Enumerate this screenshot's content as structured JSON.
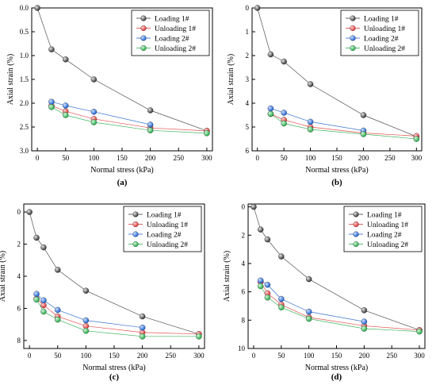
{
  "chart_data": [
    {
      "type": "scatter",
      "panel_label": "(a)",
      "xlabel": "Normal stress (kPa)",
      "ylabel": "Axial strain (%)",
      "xlim": [
        -10,
        310
      ],
      "ylim": [
        0.0,
        3.0
      ],
      "y_inverted": true,
      "xticks": [
        "0",
        "50",
        "100",
        "150",
        "200",
        "250",
        "300"
      ],
      "yticks": [
        "0.0",
        "0.5",
        "1.0",
        "1.5",
        "2.0",
        "2.5",
        "3.0"
      ],
      "legend_position": "top-right",
      "series": [
        {
          "name": "Loading 1#",
          "color": "#333333",
          "x": [
            0,
            25,
            50,
            100,
            200,
            300
          ],
          "y": [
            0.0,
            0.87,
            1.08,
            1.5,
            2.15,
            2.58
          ]
        },
        {
          "name": "Unloading 1#",
          "color": "#e03030",
          "x": [
            25,
            50,
            100,
            200,
            300
          ],
          "y": [
            2.05,
            2.17,
            2.33,
            2.52,
            2.58
          ]
        },
        {
          "name": "Loading 2#",
          "color": "#1a5fd0",
          "x": [
            25,
            50,
            100,
            200
          ],
          "y": [
            1.97,
            2.05,
            2.18,
            2.45
          ]
        },
        {
          "name": "Unloading 2#",
          "color": "#22aa44",
          "x": [
            25,
            50,
            100,
            200,
            300
          ],
          "y": [
            2.08,
            2.25,
            2.4,
            2.57,
            2.63
          ]
        }
      ]
    },
    {
      "type": "scatter",
      "panel_label": "(b)",
      "xlabel": "Normal stress (kPa)",
      "ylabel": "Axial strain (%)",
      "xlim": [
        -10,
        310
      ],
      "ylim": [
        0,
        6
      ],
      "y_inverted": true,
      "xticks": [
        "0",
        "50",
        "100",
        "150",
        "200",
        "250",
        "300"
      ],
      "yticks": [
        "0",
        "1",
        "2",
        "3",
        "4",
        "5",
        "6"
      ],
      "legend_position": "top-right",
      "series": [
        {
          "name": "Loading 1#",
          "color": "#333333",
          "x": [
            0,
            25,
            50,
            100,
            200,
            300
          ],
          "y": [
            0.0,
            1.95,
            2.25,
            3.2,
            4.5,
            5.4
          ]
        },
        {
          "name": "Unloading 1#",
          "color": "#e03030",
          "x": [
            25,
            50,
            100,
            200,
            300
          ],
          "y": [
            4.45,
            4.7,
            5.0,
            5.25,
            5.38
          ]
        },
        {
          "name": "Loading 2#",
          "color": "#1a5fd0",
          "x": [
            25,
            50,
            100,
            200
          ],
          "y": [
            4.22,
            4.4,
            4.78,
            5.15
          ]
        },
        {
          "name": "Unloading 2#",
          "color": "#22aa44",
          "x": [
            25,
            50,
            100,
            200,
            300
          ],
          "y": [
            4.45,
            4.85,
            5.1,
            5.3,
            5.5
          ]
        }
      ]
    },
    {
      "type": "scatter",
      "panel_label": "(c)",
      "xlabel": "Normal stress (kPa)",
      "ylabel": "Axial strain (%)",
      "xlim": [
        -10,
        310
      ],
      "ylim": [
        -0.5,
        8.5
      ],
      "y_inverted": true,
      "xticks": [
        "0",
        "50",
        "100",
        "150",
        "200",
        "250",
        "300"
      ],
      "yticks": [
        "0",
        "2",
        "4",
        "6",
        "8"
      ],
      "legend_position": "top-right",
      "series": [
        {
          "name": "Loading 1#",
          "color": "#333333",
          "x": [
            0,
            12.5,
            25,
            50,
            100,
            200,
            300
          ],
          "y": [
            0.0,
            1.6,
            2.2,
            3.6,
            4.9,
            6.5,
            7.6
          ]
        },
        {
          "name": "Unloading 1#",
          "color": "#e03030",
          "x": [
            12.5,
            25,
            50,
            100,
            200,
            300
          ],
          "y": [
            5.4,
            5.8,
            6.5,
            7.1,
            7.5,
            7.6
          ]
        },
        {
          "name": "Loading 2#",
          "color": "#1a5fd0",
          "x": [
            12.5,
            25,
            50,
            100,
            200
          ],
          "y": [
            5.1,
            5.5,
            6.1,
            6.75,
            7.2
          ]
        },
        {
          "name": "Unloading 2#",
          "color": "#22aa44",
          "x": [
            12.5,
            25,
            50,
            100,
            200,
            300
          ],
          "y": [
            5.45,
            6.2,
            6.7,
            7.4,
            7.75,
            7.75
          ]
        }
      ]
    },
    {
      "type": "scatter",
      "panel_label": "(d)",
      "xlabel": "Normal stress (kPa)",
      "ylabel": "Axial strain (%)",
      "xlim": [
        -10,
        310
      ],
      "ylim": [
        -0.2,
        10
      ],
      "y_inverted": true,
      "xticks": [
        "0",
        "50",
        "100",
        "150",
        "200",
        "250",
        "300"
      ],
      "yticks": [
        "0",
        "2",
        "4",
        "6",
        "8",
        "10"
      ],
      "legend_position": "top-right",
      "series": [
        {
          "name": "Loading 1#",
          "color": "#333333",
          "x": [
            0,
            12.5,
            25,
            50,
            100,
            200,
            300
          ],
          "y": [
            0.0,
            1.6,
            2.3,
            3.5,
            5.1,
            7.3,
            8.7
          ]
        },
        {
          "name": "Unloading 1#",
          "color": "#e03030",
          "x": [
            12.5,
            25,
            50,
            100,
            200,
            300
          ],
          "y": [
            5.3,
            6.1,
            6.9,
            7.8,
            8.4,
            8.7
          ]
        },
        {
          "name": "Loading 2#",
          "color": "#1a5fd0",
          "x": [
            12.5,
            25,
            50,
            100,
            200
          ],
          "y": [
            5.2,
            5.5,
            6.5,
            7.4,
            8.1
          ]
        },
        {
          "name": "Unloading 2#",
          "color": "#22aa44",
          "x": [
            12.5,
            25,
            50,
            100,
            200,
            300
          ],
          "y": [
            5.6,
            6.4,
            7.1,
            7.9,
            8.6,
            8.8
          ]
        }
      ]
    }
  ]
}
